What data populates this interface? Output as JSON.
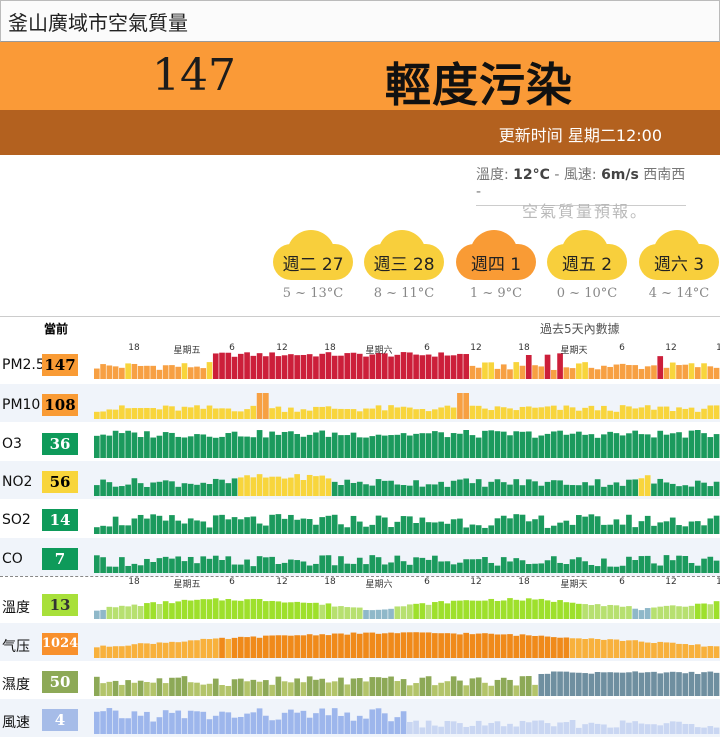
{
  "page_title": "釜山廣域市空氣質量",
  "current": {
    "aqi": "147",
    "level": "輕度污染",
    "updated": "更新时间 星期二12:00"
  },
  "weather": {
    "temp_label": "溫度:",
    "temp_value": "12°C",
    "wind_label": "- 風速:",
    "wind_value": "6m/s",
    "wind_dir": "西南西 -"
  },
  "forecast_title": "空氣質量預報。",
  "forecast": [
    {
      "day": "週二 27",
      "range": "5 ~ 13°C",
      "color": "#f8cf3c"
    },
    {
      "day": "週三 28",
      "range": "8 ~ 11°C",
      "color": "#f8cf3c"
    },
    {
      "day": "週四 1",
      "range": "1 ~ 9°C",
      "color": "#f99b35"
    },
    {
      "day": "週五 2",
      "range": "0 ~ 10°C",
      "color": "#f8cf3c"
    },
    {
      "day": "週六 3",
      "range": "4 ~ 14°C",
      "color": "#f8cf3c"
    }
  ],
  "table": {
    "current_header": "當前",
    "history_header": "過去5天內數據",
    "ticks": [
      "18",
      "星期五",
      "6",
      "12",
      "18",
      "星期六",
      "6",
      "12",
      "18",
      "星期天",
      "6",
      "12",
      "1"
    ],
    "rows": [
      {
        "name": "PM2.5",
        "value": "147",
        "badge_bg": "#f99b35",
        "badge_fg": "#000"
      },
      {
        "name": "PM10",
        "value": "108",
        "badge_bg": "#f99b35",
        "badge_fg": "#000"
      },
      {
        "name": "O3",
        "value": "36",
        "badge_bg": "#0e9a5a",
        "badge_fg": "#fff"
      },
      {
        "name": "NO2",
        "value": "56",
        "badge_bg": "#f8d53c",
        "badge_fg": "#000"
      },
      {
        "name": "SO2",
        "value": "14",
        "badge_bg": "#0e9a5a",
        "badge_fg": "#fff"
      },
      {
        "name": "CO",
        "value": "7",
        "badge_bg": "#0e9a5a",
        "badge_fg": "#fff"
      },
      {
        "name": "溫度",
        "value": "13",
        "badge_bg": "#a8e03a",
        "badge_fg": "#333"
      },
      {
        "name": "气压",
        "value": "1024",
        "badge_bg": "#f8902c",
        "badge_fg": "#fff"
      },
      {
        "name": "濕度",
        "value": "50",
        "badge_bg": "#8da957",
        "badge_fg": "#fff"
      },
      {
        "name": "風速",
        "value": "4",
        "badge_bg": "#a6bce8",
        "badge_fg": "#fff"
      }
    ]
  }
}
